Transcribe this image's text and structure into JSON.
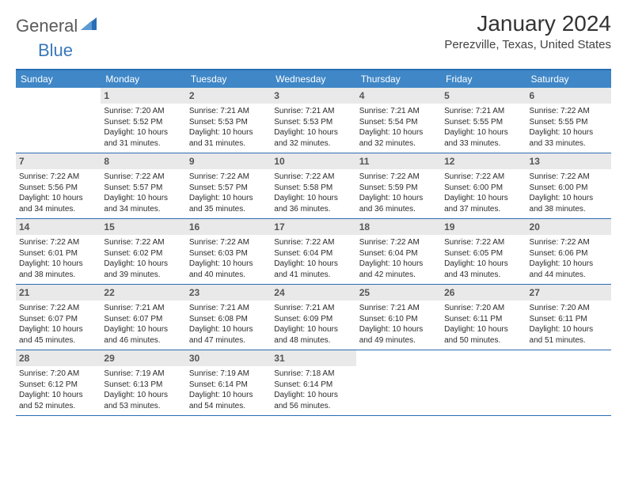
{
  "logo": {
    "word1": "General",
    "word2": "Blue"
  },
  "title": "January 2024",
  "location": "Perezville, Texas, United States",
  "weekdays": [
    "Sunday",
    "Monday",
    "Tuesday",
    "Wednesday",
    "Thursday",
    "Friday",
    "Saturday"
  ],
  "colors": {
    "header_bar": "#3f87c7",
    "border": "#2a6db4",
    "daynum_bg": "#e9e9e9",
    "logo_gray": "#5a5a5a",
    "logo_blue": "#3978b8"
  },
  "weeks": [
    [
      {
        "n": "",
        "sr": "",
        "ss": "",
        "dl": "",
        "empty": true
      },
      {
        "n": "1",
        "sr": "Sunrise: 7:20 AM",
        "ss": "Sunset: 5:52 PM",
        "dl": "Daylight: 10 hours and 31 minutes."
      },
      {
        "n": "2",
        "sr": "Sunrise: 7:21 AM",
        "ss": "Sunset: 5:53 PM",
        "dl": "Daylight: 10 hours and 31 minutes."
      },
      {
        "n": "3",
        "sr": "Sunrise: 7:21 AM",
        "ss": "Sunset: 5:53 PM",
        "dl": "Daylight: 10 hours and 32 minutes."
      },
      {
        "n": "4",
        "sr": "Sunrise: 7:21 AM",
        "ss": "Sunset: 5:54 PM",
        "dl": "Daylight: 10 hours and 32 minutes."
      },
      {
        "n": "5",
        "sr": "Sunrise: 7:21 AM",
        "ss": "Sunset: 5:55 PM",
        "dl": "Daylight: 10 hours and 33 minutes."
      },
      {
        "n": "6",
        "sr": "Sunrise: 7:22 AM",
        "ss": "Sunset: 5:55 PM",
        "dl": "Daylight: 10 hours and 33 minutes."
      }
    ],
    [
      {
        "n": "7",
        "sr": "Sunrise: 7:22 AM",
        "ss": "Sunset: 5:56 PM",
        "dl": "Daylight: 10 hours and 34 minutes."
      },
      {
        "n": "8",
        "sr": "Sunrise: 7:22 AM",
        "ss": "Sunset: 5:57 PM",
        "dl": "Daylight: 10 hours and 34 minutes."
      },
      {
        "n": "9",
        "sr": "Sunrise: 7:22 AM",
        "ss": "Sunset: 5:57 PM",
        "dl": "Daylight: 10 hours and 35 minutes."
      },
      {
        "n": "10",
        "sr": "Sunrise: 7:22 AM",
        "ss": "Sunset: 5:58 PM",
        "dl": "Daylight: 10 hours and 36 minutes."
      },
      {
        "n": "11",
        "sr": "Sunrise: 7:22 AM",
        "ss": "Sunset: 5:59 PM",
        "dl": "Daylight: 10 hours and 36 minutes."
      },
      {
        "n": "12",
        "sr": "Sunrise: 7:22 AM",
        "ss": "Sunset: 6:00 PM",
        "dl": "Daylight: 10 hours and 37 minutes."
      },
      {
        "n": "13",
        "sr": "Sunrise: 7:22 AM",
        "ss": "Sunset: 6:00 PM",
        "dl": "Daylight: 10 hours and 38 minutes."
      }
    ],
    [
      {
        "n": "14",
        "sr": "Sunrise: 7:22 AM",
        "ss": "Sunset: 6:01 PM",
        "dl": "Daylight: 10 hours and 38 minutes."
      },
      {
        "n": "15",
        "sr": "Sunrise: 7:22 AM",
        "ss": "Sunset: 6:02 PM",
        "dl": "Daylight: 10 hours and 39 minutes."
      },
      {
        "n": "16",
        "sr": "Sunrise: 7:22 AM",
        "ss": "Sunset: 6:03 PM",
        "dl": "Daylight: 10 hours and 40 minutes."
      },
      {
        "n": "17",
        "sr": "Sunrise: 7:22 AM",
        "ss": "Sunset: 6:04 PM",
        "dl": "Daylight: 10 hours and 41 minutes."
      },
      {
        "n": "18",
        "sr": "Sunrise: 7:22 AM",
        "ss": "Sunset: 6:04 PM",
        "dl": "Daylight: 10 hours and 42 minutes."
      },
      {
        "n": "19",
        "sr": "Sunrise: 7:22 AM",
        "ss": "Sunset: 6:05 PM",
        "dl": "Daylight: 10 hours and 43 minutes."
      },
      {
        "n": "20",
        "sr": "Sunrise: 7:22 AM",
        "ss": "Sunset: 6:06 PM",
        "dl": "Daylight: 10 hours and 44 minutes."
      }
    ],
    [
      {
        "n": "21",
        "sr": "Sunrise: 7:22 AM",
        "ss": "Sunset: 6:07 PM",
        "dl": "Daylight: 10 hours and 45 minutes."
      },
      {
        "n": "22",
        "sr": "Sunrise: 7:21 AM",
        "ss": "Sunset: 6:07 PM",
        "dl": "Daylight: 10 hours and 46 minutes."
      },
      {
        "n": "23",
        "sr": "Sunrise: 7:21 AM",
        "ss": "Sunset: 6:08 PM",
        "dl": "Daylight: 10 hours and 47 minutes."
      },
      {
        "n": "24",
        "sr": "Sunrise: 7:21 AM",
        "ss": "Sunset: 6:09 PM",
        "dl": "Daylight: 10 hours and 48 minutes."
      },
      {
        "n": "25",
        "sr": "Sunrise: 7:21 AM",
        "ss": "Sunset: 6:10 PM",
        "dl": "Daylight: 10 hours and 49 minutes."
      },
      {
        "n": "26",
        "sr": "Sunrise: 7:20 AM",
        "ss": "Sunset: 6:11 PM",
        "dl": "Daylight: 10 hours and 50 minutes."
      },
      {
        "n": "27",
        "sr": "Sunrise: 7:20 AM",
        "ss": "Sunset: 6:11 PM",
        "dl": "Daylight: 10 hours and 51 minutes."
      }
    ],
    [
      {
        "n": "28",
        "sr": "Sunrise: 7:20 AM",
        "ss": "Sunset: 6:12 PM",
        "dl": "Daylight: 10 hours and 52 minutes."
      },
      {
        "n": "29",
        "sr": "Sunrise: 7:19 AM",
        "ss": "Sunset: 6:13 PM",
        "dl": "Daylight: 10 hours and 53 minutes."
      },
      {
        "n": "30",
        "sr": "Sunrise: 7:19 AM",
        "ss": "Sunset: 6:14 PM",
        "dl": "Daylight: 10 hours and 54 minutes."
      },
      {
        "n": "31",
        "sr": "Sunrise: 7:18 AM",
        "ss": "Sunset: 6:14 PM",
        "dl": "Daylight: 10 hours and 56 minutes."
      },
      {
        "n": "",
        "sr": "",
        "ss": "",
        "dl": "",
        "empty": true
      },
      {
        "n": "",
        "sr": "",
        "ss": "",
        "dl": "",
        "empty": true
      },
      {
        "n": "",
        "sr": "",
        "ss": "",
        "dl": "",
        "empty": true
      }
    ]
  ]
}
